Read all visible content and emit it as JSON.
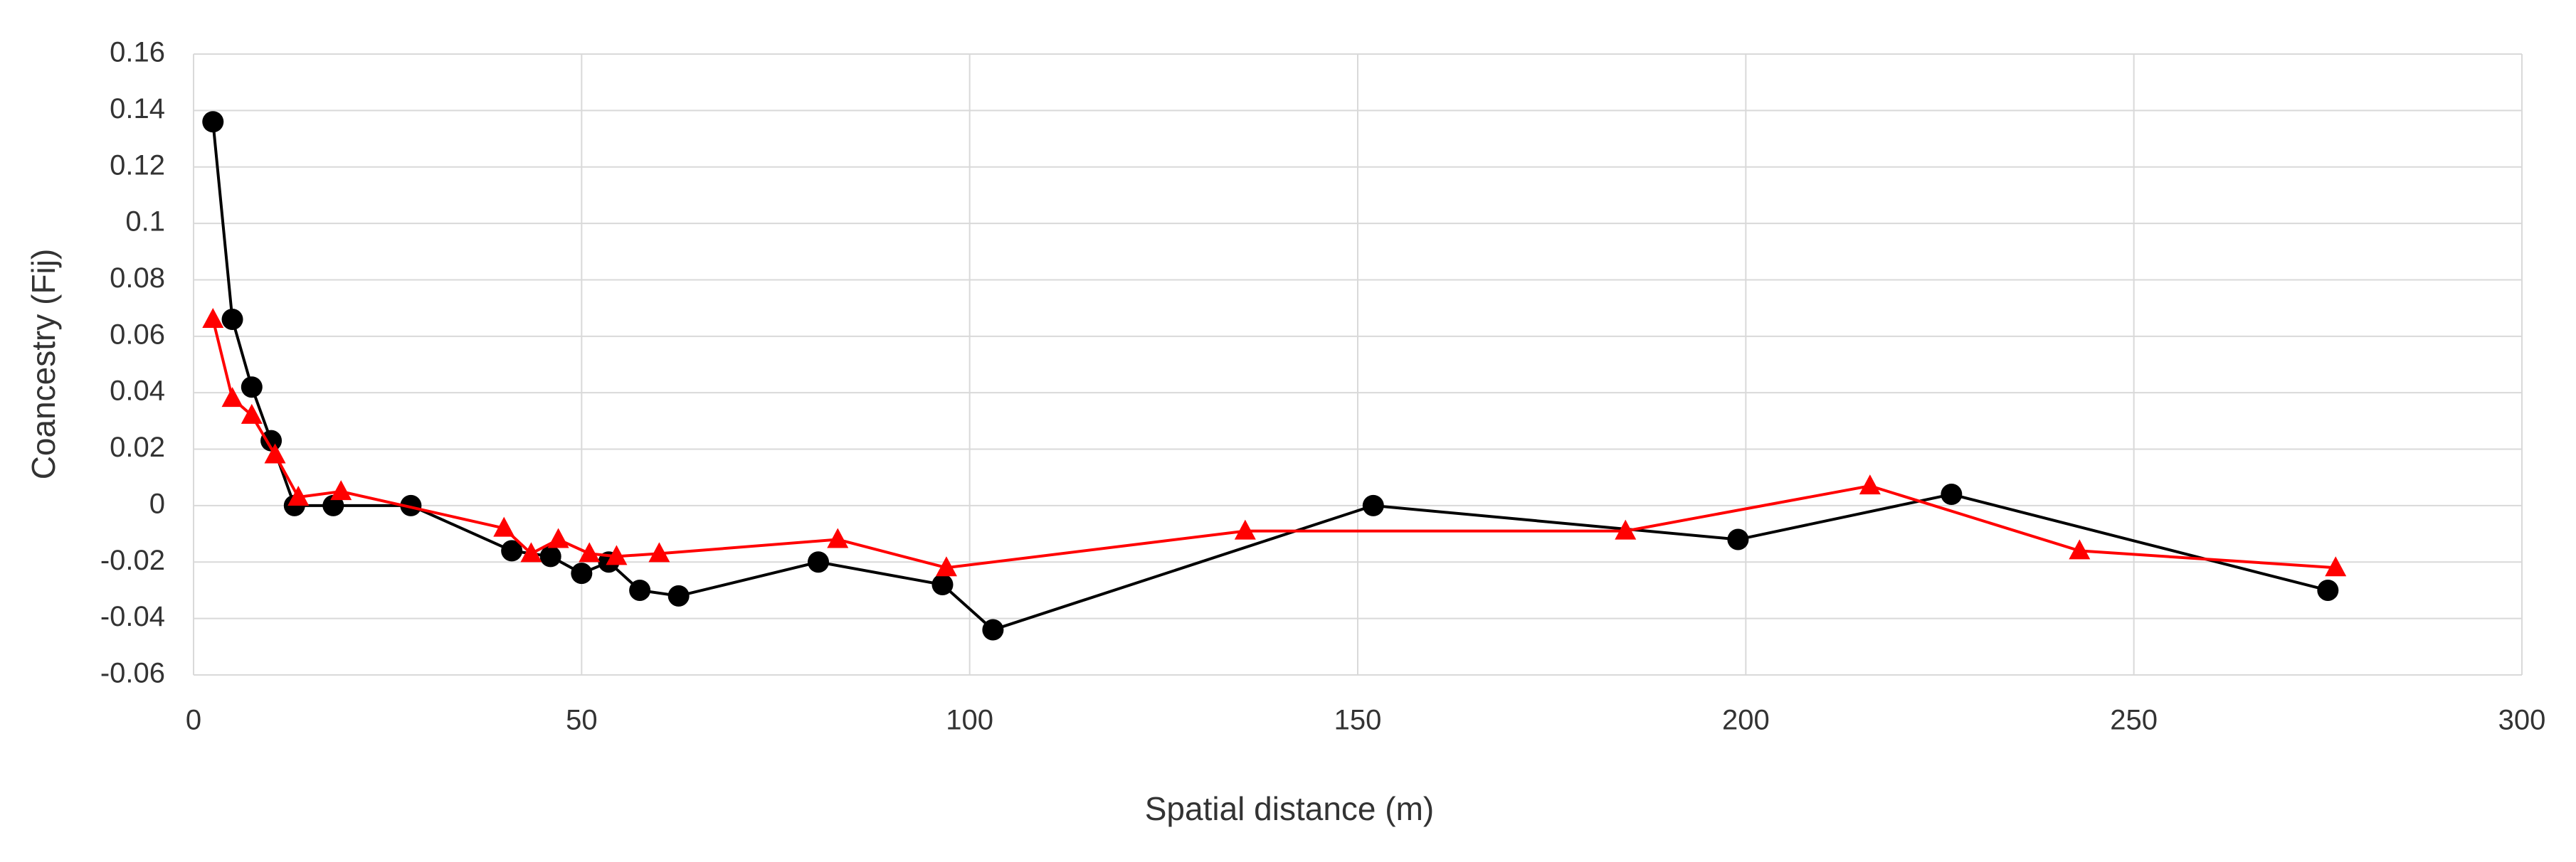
{
  "chart_data": {
    "type": "line",
    "x_label": "Spatial distance (m)",
    "y_label": "Coancestry (Fij)",
    "xlim": [
      0,
      300
    ],
    "xticks": [
      0,
      50,
      100,
      150,
      200,
      250,
      300
    ],
    "ylim": [
      -0.06,
      0.16
    ],
    "yticks": [
      -0.06,
      -0.04,
      -0.02,
      0,
      0.02,
      0.04,
      0.06,
      0.08,
      0.1,
      0.12,
      0.14,
      0.16
    ],
    "grid": true,
    "series": [
      {
        "color": "#000000",
        "marker": "circle",
        "x": [
          2.5,
          5,
          7.5,
          10,
          13,
          18,
          28,
          41,
          46,
          50,
          53.5,
          57.5,
          62.5,
          80.5,
          96.5,
          103,
          152,
          199,
          226.5,
          275
        ],
        "values": [
          0.136,
          0.066,
          0.042,
          0.023,
          0.0,
          0.0,
          0.0,
          -0.016,
          -0.018,
          -0.024,
          -0.02,
          -0.03,
          -0.032,
          -0.02,
          -0.028,
          -0.044,
          0.0,
          -0.012,
          0.004,
          -0.03
        ]
      },
      {
        "color": "#ff0000",
        "marker": "triangle",
        "x": [
          2.5,
          5,
          7.5,
          10.5,
          13.5,
          19,
          40,
          43.5,
          47,
          51,
          54.5,
          60,
          83,
          97,
          135.5,
          184.5,
          216,
          243,
          276
        ],
        "values": [
          0.066,
          0.038,
          0.032,
          0.018,
          0.003,
          0.005,
          -0.008,
          -0.017,
          -0.012,
          -0.017,
          -0.018,
          -0.017,
          -0.012,
          -0.022,
          -0.009,
          -0.009,
          0.007,
          -0.016,
          -0.022
        ]
      }
    ]
  }
}
